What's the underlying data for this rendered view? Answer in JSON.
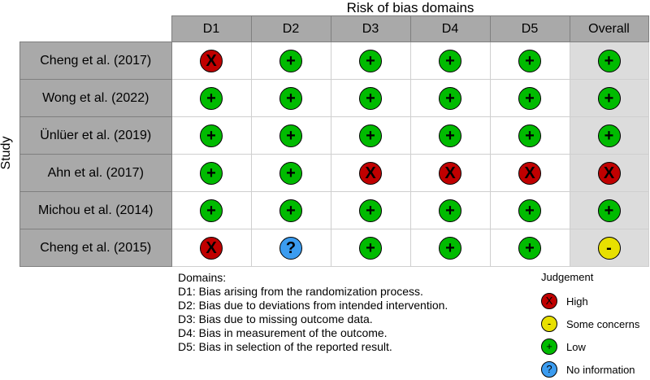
{
  "title": "Risk of bias domains",
  "y_label": "Study",
  "columns": [
    "D1",
    "D2",
    "D3",
    "D4",
    "D5",
    "Overall"
  ],
  "symbols": {
    "high": {
      "glyph": "X",
      "color": "#c00000",
      "fg": "#000000"
    },
    "some": {
      "glyph": "-",
      "color": "#e8e000",
      "fg": "#000000"
    },
    "low": {
      "glyph": "+",
      "color": "#00bb00",
      "fg": "#000000"
    },
    "noinfo": {
      "glyph": "?",
      "color": "#3b9cf0",
      "fg": "#000000"
    }
  },
  "studies": [
    {
      "name": "Cheng et al. (2017)",
      "judgements": [
        "high",
        "low",
        "low",
        "low",
        "low",
        "low"
      ]
    },
    {
      "name": "Wong et al. (2022)",
      "judgements": [
        "low",
        "low",
        "low",
        "low",
        "low",
        "low"
      ]
    },
    {
      "name": "Ünlüer et al. (2019)",
      "judgements": [
        "low",
        "low",
        "low",
        "low",
        "low",
        "low"
      ]
    },
    {
      "name": "Ahn et al. (2017)",
      "judgements": [
        "low",
        "low",
        "high",
        "high",
        "high",
        "high"
      ]
    },
    {
      "name": "Michou et al. (2014)",
      "judgements": [
        "low",
        "low",
        "low",
        "low",
        "low",
        "low"
      ]
    },
    {
      "name": "Cheng et al. (2015)",
      "judgements": [
        "high",
        "noinfo",
        "low",
        "low",
        "low",
        "some"
      ]
    }
  ],
  "domains": {
    "heading": "Domains:",
    "items": [
      "D1: Bias arising from the randomization process.",
      "D2: Bias due to deviations from intended intervention.",
      "D3: Bias due to missing outcome data.",
      "D4: Bias in measurement of the outcome.",
      "D5: Bias in selection of the reported result."
    ]
  },
  "legend": {
    "title": "Judgement",
    "items": [
      {
        "key": "high",
        "label": "High"
      },
      {
        "key": "some",
        "label": "Some concerns"
      },
      {
        "key": "low",
        "label": "Low"
      },
      {
        "key": "noinfo",
        "label": "No information"
      }
    ]
  }
}
